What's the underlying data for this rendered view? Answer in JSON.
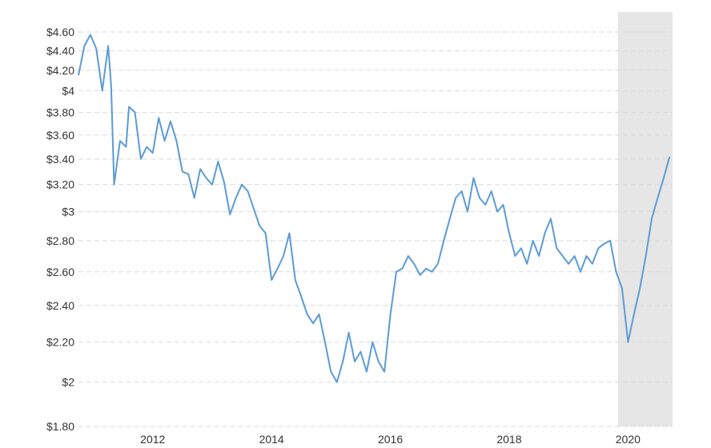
{
  "chart_data": {
    "type": "line",
    "title": "",
    "xlabel": "",
    "ylabel": "",
    "y_scale": "log",
    "ylim": [
      1.8,
      4.6
    ],
    "y_ticks": [
      {
        "value": 1.8,
        "label": "$1.80"
      },
      {
        "value": 2.0,
        "label": "$2"
      },
      {
        "value": 2.2,
        "label": "$2.20"
      },
      {
        "value": 2.4,
        "label": "$2.40"
      },
      {
        "value": 2.6,
        "label": "$2.60"
      },
      {
        "value": 2.8,
        "label": "$2.80"
      },
      {
        "value": 3.0,
        "label": "$3"
      },
      {
        "value": 3.2,
        "label": "$3.20"
      },
      {
        "value": 3.4,
        "label": "$3.40"
      },
      {
        "value": 3.6,
        "label": "$3.60"
      },
      {
        "value": 3.8,
        "label": "$3.80"
      },
      {
        "value": 4.0,
        "label": "$4"
      },
      {
        "value": 4.2,
        "label": "$4.20"
      },
      {
        "value": 4.4,
        "label": "$4.40"
      },
      {
        "value": 4.6,
        "label": "$4.60"
      }
    ],
    "xlim": [
      2010.75,
      2020.75
    ],
    "x_ticks": [
      {
        "value": 2012,
        "label": "2012"
      },
      {
        "value": 2014,
        "label": "2014"
      },
      {
        "value": 2016,
        "label": "2016"
      },
      {
        "value": 2018,
        "label": "2018"
      },
      {
        "value": 2020,
        "label": "2020"
      }
    ],
    "grid": true,
    "legend": "none",
    "shaded_region": {
      "x_start": 2019.83,
      "x_end": 2020.75,
      "color": "#e6e6e6"
    },
    "series": [
      {
        "color": "#5b9bd5",
        "x": [
          2010.75,
          2010.85,
          2010.95,
          2011.05,
          2011.15,
          2011.25,
          2011.3,
          2011.35,
          2011.45,
          2011.55,
          2011.6,
          2011.7,
          2011.8,
          2011.9,
          2012.0,
          2012.1,
          2012.2,
          2012.3,
          2012.4,
          2012.5,
          2012.6,
          2012.7,
          2012.8,
          2012.9,
          2013.0,
          2013.1,
          2013.2,
          2013.3,
          2013.4,
          2013.5,
          2013.6,
          2013.7,
          2013.8,
          2013.9,
          2014.0,
          2014.1,
          2014.2,
          2014.3,
          2014.4,
          2014.5,
          2014.6,
          2014.7,
          2014.8,
          2014.9,
          2015.0,
          2015.1,
          2015.2,
          2015.3,
          2015.4,
          2015.5,
          2015.6,
          2015.7,
          2015.8,
          2015.9,
          2016.0,
          2016.1,
          2016.2,
          2016.3,
          2016.4,
          2016.5,
          2016.6,
          2016.7,
          2016.8,
          2016.9,
          2017.0,
          2017.1,
          2017.2,
          2017.3,
          2017.4,
          2017.5,
          2017.6,
          2017.7,
          2017.8,
          2017.9,
          2018.0,
          2018.1,
          2018.2,
          2018.3,
          2018.4,
          2018.5,
          2018.6,
          2018.7,
          2018.8,
          2018.9,
          2019.0,
          2019.1,
          2019.2,
          2019.3,
          2019.4,
          2019.5,
          2019.6,
          2019.7,
          2019.8,
          2019.9,
          2020.0,
          2020.1,
          2020.2,
          2020.3,
          2020.4,
          2020.5,
          2020.6,
          2020.7
        ],
        "values": [
          4.15,
          4.45,
          4.57,
          4.42,
          4.0,
          4.45,
          4.05,
          3.2,
          3.55,
          3.5,
          3.85,
          3.8,
          3.4,
          3.5,
          3.45,
          3.75,
          3.55,
          3.72,
          3.55,
          3.3,
          3.28,
          3.1,
          3.32,
          3.25,
          3.2,
          3.38,
          3.22,
          2.98,
          3.1,
          3.2,
          3.15,
          3.02,
          2.9,
          2.85,
          2.55,
          2.62,
          2.7,
          2.85,
          2.55,
          2.45,
          2.35,
          2.3,
          2.35,
          2.2,
          2.05,
          2.0,
          2.1,
          2.25,
          2.1,
          2.15,
          2.05,
          2.2,
          2.1,
          2.05,
          2.35,
          2.6,
          2.62,
          2.7,
          2.65,
          2.58,
          2.62,
          2.6,
          2.65,
          2.8,
          2.95,
          3.1,
          3.15,
          3.0,
          3.25,
          3.1,
          3.05,
          3.15,
          3.0,
          3.05,
          2.85,
          2.7,
          2.75,
          2.65,
          2.8,
          2.7,
          2.85,
          2.95,
          2.75,
          2.7,
          2.65,
          2.7,
          2.6,
          2.7,
          2.65,
          2.75,
          2.78,
          2.8,
          2.6,
          2.5,
          2.2,
          2.35,
          2.5,
          2.7,
          2.95,
          3.1,
          3.25,
          3.42
        ]
      }
    ]
  }
}
